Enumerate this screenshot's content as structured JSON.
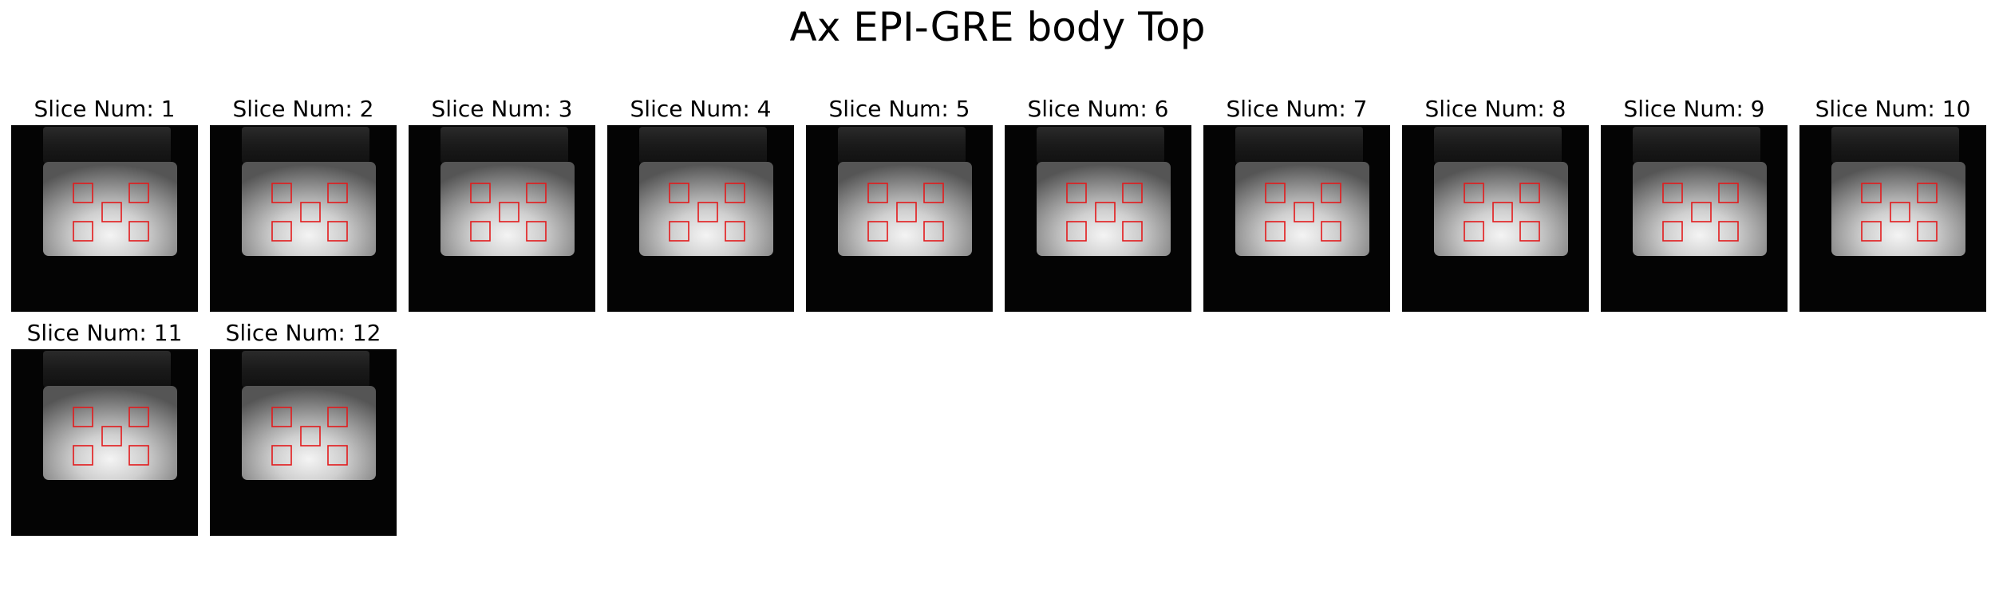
{
  "figure": {
    "title": "Ax EPI-GRE body Top",
    "roi_color": "#e31a1c"
  },
  "panels": [
    {
      "label": "Slice Num: 1"
    },
    {
      "label": "Slice Num: 2"
    },
    {
      "label": "Slice Num: 3"
    },
    {
      "label": "Slice Num: 4"
    },
    {
      "label": "Slice Num: 5"
    },
    {
      "label": "Slice Num: 6"
    },
    {
      "label": "Slice Num: 7"
    },
    {
      "label": "Slice Num: 8"
    },
    {
      "label": "Slice Num: 9"
    },
    {
      "label": "Slice Num: 10"
    },
    {
      "label": "Slice Num: 11"
    },
    {
      "label": "Slice Num: 12"
    }
  ]
}
